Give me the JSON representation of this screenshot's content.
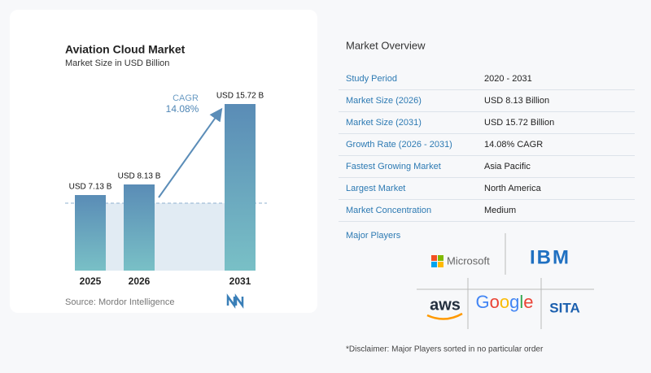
{
  "chart_data": {
    "type": "bar",
    "title": "Aviation Cloud Market",
    "subtitle": "Market Size in USD Billion",
    "categories": [
      "2025",
      "2026",
      "2031"
    ],
    "values": [
      7.13,
      8.13,
      15.72
    ],
    "value_labels": [
      "USD 7.13 B",
      "USD 8.13 B",
      "USD 15.72 B"
    ],
    "annotation": {
      "label": "CAGR",
      "value": "14.08%"
    },
    "source": "Source: Mordor Intelligence"
  },
  "overview": {
    "title": "Market Overview",
    "rows": [
      [
        "Study Period",
        "2020 - 2031"
      ],
      [
        "Market Size (2026)",
        "USD 8.13 Billion"
      ],
      [
        "Market Size (2031)",
        "USD 15.72 Billion"
      ],
      [
        "Growth Rate (2026 - 2031)",
        "14.08% CAGR"
      ],
      [
        "Fastest Growing Market",
        "Asia Pacific"
      ],
      [
        "Largest Market",
        "North America"
      ],
      [
        "Market Concentration",
        "Medium"
      ]
    ]
  },
  "players": {
    "title": "Major Players",
    "names": [
      "Microsoft",
      "IBM",
      "aws",
      "Google",
      "SITA"
    ]
  },
  "disclaimer": "*Disclaimer: Major Players sorted in no particular order"
}
